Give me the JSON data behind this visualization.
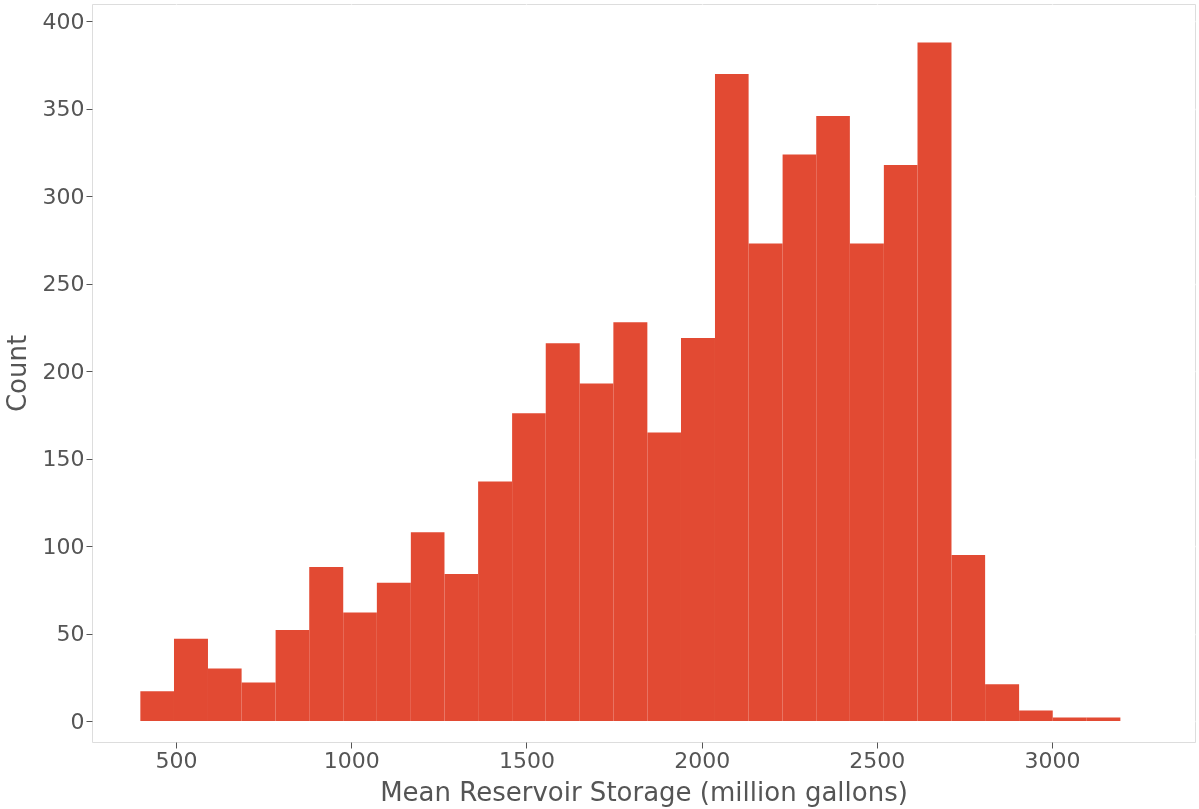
{
  "chart_data": {
    "type": "histogram",
    "xlabel": "Mean Reservoir Storage (million gallons)",
    "ylabel": "Count",
    "bins": [
      398,
      494,
      591,
      687,
      784,
      880,
      977,
      1073,
      1170,
      1266,
      1362,
      1459,
      1555,
      1652,
      1748,
      1845,
      1941,
      2038,
      2134,
      2231,
      2327,
      2423,
      2520,
      2616,
      2713,
      2809,
      2906,
      3002,
      3099,
      3195
    ],
    "values": [
      17,
      47,
      30,
      22,
      52,
      88,
      62,
      79,
      108,
      84,
      137,
      176,
      216,
      193,
      228,
      165,
      219,
      370,
      273,
      324,
      346,
      273,
      318,
      388,
      95,
      21,
      6,
      2,
      2
    ],
    "color": "#e24a33",
    "xlim": [
      260,
      3408
    ],
    "xticks": [
      500,
      1000,
      1500,
      2000,
      2500,
      3000
    ],
    "ylim": [
      -12,
      410
    ],
    "yticks": [
      0,
      50,
      100,
      150,
      200,
      250,
      300,
      350,
      400
    ],
    "grid": true
  }
}
